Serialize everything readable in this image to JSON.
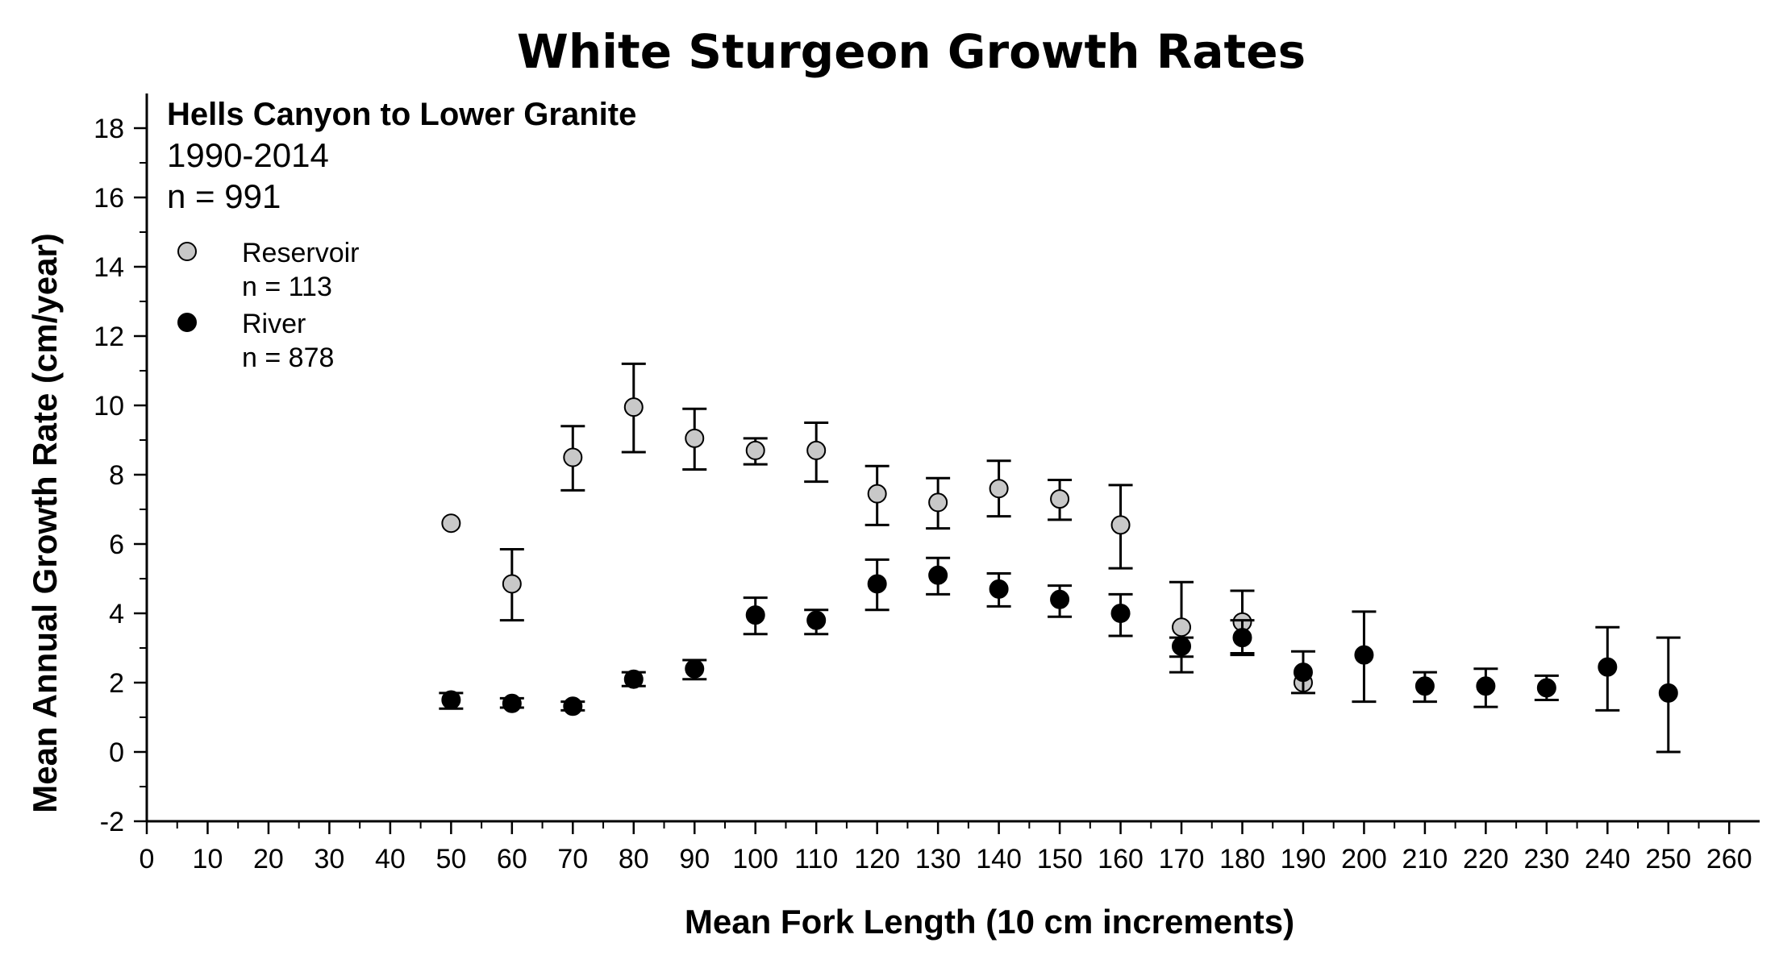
{
  "chart_data": {
    "type": "scatter",
    "title": "White Sturgeon Growth Rates",
    "xlabel": "Mean Fork Length (10 cm increments)",
    "ylabel": "Mean Annual Growth Rate (cm/year)",
    "xlim": [
      0,
      265
    ],
    "ylim": [
      -2,
      19
    ],
    "xticks": [
      "0",
      "10",
      "20",
      "30",
      "40",
      "50",
      "60",
      "70",
      "80",
      "90",
      "100",
      "110",
      "120",
      "130",
      "140",
      "150",
      "160",
      "170",
      "180",
      "190",
      "200",
      "210",
      "220",
      "230",
      "240",
      "250",
      "260"
    ],
    "yticks": [
      "-2",
      "0",
      "2",
      "4",
      "6",
      "8",
      "10",
      "12",
      "14",
      "16",
      "18"
    ],
    "annotation": {
      "line1": "Hells Canyon to Lower Granite",
      "line2": "1990-2014",
      "line3": "n = 991"
    },
    "legend_position": "top-left",
    "series": [
      {
        "name": "Reservoir",
        "legend_n": "n = 113",
        "marker_color": "#c8c8c8",
        "points": [
          {
            "x": 50,
            "y": 6.6,
            "low": null,
            "high": null
          },
          {
            "x": 60,
            "y": 4.85,
            "low": 3.8,
            "high": 5.85
          },
          {
            "x": 70,
            "y": 8.5,
            "low": 7.55,
            "high": 9.4
          },
          {
            "x": 80,
            "y": 9.95,
            "low": 8.65,
            "high": 11.2
          },
          {
            "x": 90,
            "y": 9.05,
            "low": 8.15,
            "high": 9.9
          },
          {
            "x": 100,
            "y": 8.7,
            "low": 8.3,
            "high": 9.05
          },
          {
            "x": 110,
            "y": 8.7,
            "low": 7.8,
            "high": 9.5
          },
          {
            "x": 120,
            "y": 7.45,
            "low": 6.55,
            "high": 8.25
          },
          {
            "x": 130,
            "y": 7.2,
            "low": 6.45,
            "high": 7.9
          },
          {
            "x": 140,
            "y": 7.6,
            "low": 6.8,
            "high": 8.4
          },
          {
            "x": 150,
            "y": 7.3,
            "low": 6.7,
            "high": 7.85
          },
          {
            "x": 160,
            "y": 6.55,
            "low": 5.3,
            "high": 7.7
          },
          {
            "x": 170,
            "y": 3.6,
            "low": 2.3,
            "high": 4.9
          },
          {
            "x": 180,
            "y": 3.75,
            "low": 2.85,
            "high": 4.65
          },
          {
            "x": 190,
            "y": 2.0,
            "low": null,
            "high": null
          }
        ]
      },
      {
        "name": "River",
        "legend_n": "n = 878",
        "marker_color": "#000000",
        "points": [
          {
            "x": 50,
            "y": 1.5,
            "low": 1.25,
            "high": 1.7
          },
          {
            "x": 60,
            "y": 1.4,
            "low": 1.28,
            "high": 1.55
          },
          {
            "x": 70,
            "y": 1.32,
            "low": 1.2,
            "high": 1.45
          },
          {
            "x": 80,
            "y": 2.1,
            "low": 1.9,
            "high": 2.3
          },
          {
            "x": 90,
            "y": 2.4,
            "low": 2.1,
            "high": 2.65
          },
          {
            "x": 100,
            "y": 3.95,
            "low": 3.4,
            "high": 4.45
          },
          {
            "x": 110,
            "y": 3.8,
            "low": 3.4,
            "high": 4.1
          },
          {
            "x": 120,
            "y": 4.85,
            "low": 4.1,
            "high": 5.55
          },
          {
            "x": 130,
            "y": 5.1,
            "low": 4.55,
            "high": 5.6
          },
          {
            "x": 140,
            "y": 4.7,
            "low": 4.2,
            "high": 5.15
          },
          {
            "x": 150,
            "y": 4.4,
            "low": 3.9,
            "high": 4.8
          },
          {
            "x": 160,
            "y": 4.0,
            "low": 3.35,
            "high": 4.55
          },
          {
            "x": 170,
            "y": 3.05,
            "low": 2.75,
            "high": 3.3
          },
          {
            "x": 180,
            "y": 3.3,
            "low": 2.8,
            "high": 3.8
          },
          {
            "x": 190,
            "y": 2.3,
            "low": 1.7,
            "high": 2.9
          },
          {
            "x": 200,
            "y": 2.8,
            "low": 1.45,
            "high": 4.05
          },
          {
            "x": 210,
            "y": 1.9,
            "low": 1.45,
            "high": 2.3
          },
          {
            "x": 220,
            "y": 1.9,
            "low": 1.3,
            "high": 2.4
          },
          {
            "x": 230,
            "y": 1.85,
            "low": 1.5,
            "high": 2.2
          },
          {
            "x": 240,
            "y": 2.45,
            "low": 1.2,
            "high": 3.6
          },
          {
            "x": 250,
            "y": 1.7,
            "low": 0.0,
            "high": 3.3
          }
        ]
      }
    ]
  }
}
